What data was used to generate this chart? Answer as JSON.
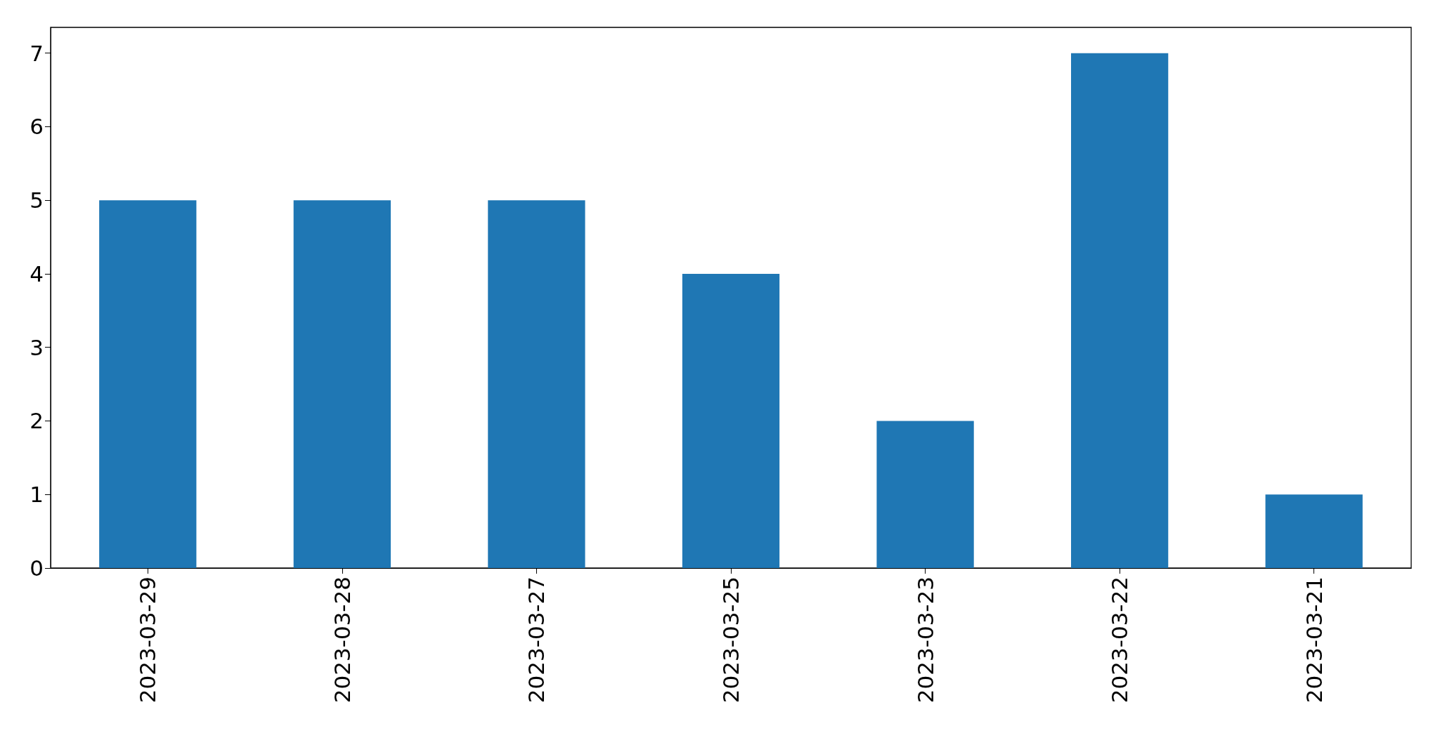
{
  "chart_data": {
    "type": "bar",
    "categories": [
      "2023-03-29",
      "2023-03-28",
      "2023-03-27",
      "2023-03-25",
      "2023-03-23",
      "2023-03-22",
      "2023-03-21"
    ],
    "values": [
      5,
      5,
      5,
      4,
      2,
      7,
      1
    ],
    "color": "#1f77b4",
    "ylim": [
      0,
      7.35
    ],
    "yticks": [
      0,
      1,
      2,
      3,
      4,
      5,
      6,
      7
    ]
  }
}
